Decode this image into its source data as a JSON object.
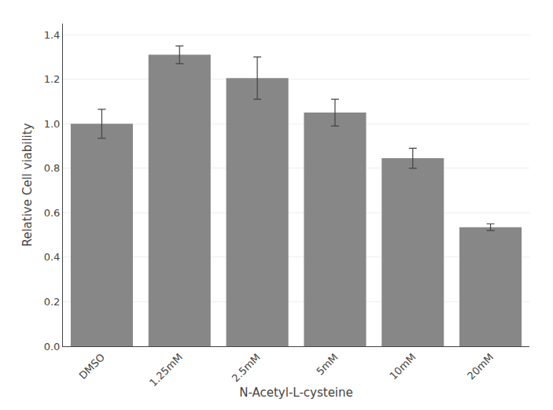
{
  "chart_data": {
    "type": "bar",
    "categories": [
      "DMSO",
      "1.25mM",
      "2.5mM",
      "5mM",
      "10mM",
      "20mM"
    ],
    "values": [
      1.0,
      1.31,
      1.205,
      1.05,
      0.845,
      0.535
    ],
    "errors": [
      0.065,
      0.04,
      0.095,
      0.06,
      0.045,
      0.015
    ],
    "color": "#878787",
    "xlabel": "N-Acetyl-L-cysteine",
    "ylabel": "Relative Cell viability",
    "ylim": [
      0,
      1.45
    ],
    "yticks": [
      {
        "value": 0.0,
        "label": "0.0"
      },
      0.2,
      0.4,
      0.6,
      0.8,
      {
        "value": 1.0,
        "label": "1.0"
      },
      1.2,
      1.4
    ],
    "grid": true
  }
}
